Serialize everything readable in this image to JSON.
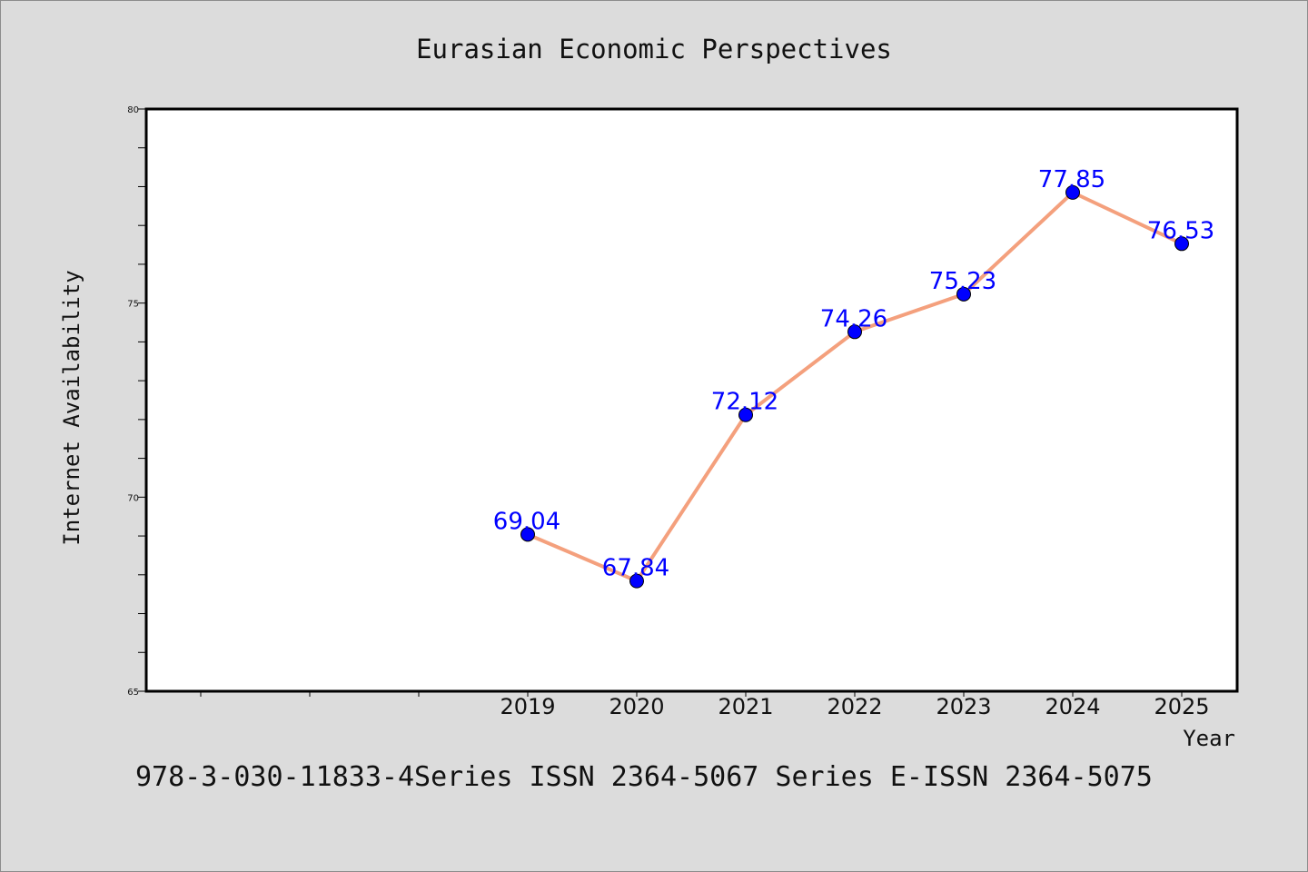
{
  "chart_data": {
    "type": "line",
    "title": "Eurasian Economic Perspectives",
    "xlabel": "Year",
    "ylabel": "Internet Availability",
    "x": [
      "2019",
      "2020",
      "2021",
      "2022",
      "2023",
      "2024",
      "2025"
    ],
    "series": [
      {
        "values": [
          69.04,
          67.84,
          72.12,
          74.26,
          75.23,
          77.85,
          76.53
        ],
        "labels": [
          "69.04",
          "67.84",
          "72.12",
          "74.26",
          "75.23",
          "77.85",
          "76.53"
        ]
      }
    ],
    "ylim": [
      65,
      80
    ],
    "yticks": [
      "65",
      "70",
      "75",
      "80"
    ],
    "grid": false,
    "legend": "none",
    "line_color": "#f4a07d",
    "marker_color": "#0000ff",
    "label_color": "#0000ff"
  },
  "footer": {
    "text": "978-3-030-11833-4Series ISSN 2364-5067 Series E-ISSN 2364-5075"
  }
}
